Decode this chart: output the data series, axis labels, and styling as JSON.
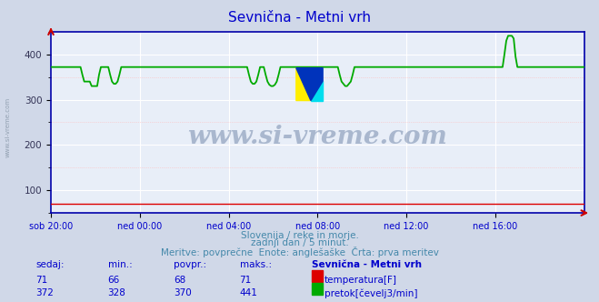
{
  "title": "Sevnična - Metni vrh",
  "title_color": "#0000cc",
  "bg_color": "#d0d8e8",
  "plot_bg_color": "#e8eef8",
  "grid_color_major": "#ffffff",
  "grid_color_minor": "#ffbbbb",
  "xtick_labels": [
    "sob 20:00",
    "ned 00:00",
    "ned 04:00",
    "ned 08:00",
    "ned 12:00",
    "ned 16:00"
  ],
  "n_points": 289,
  "temp_value": 71,
  "temp_color": "#dd0000",
  "flow_color": "#00aa00",
  "flow_base": 372,
  "watermark_text": "www.si-vreme.com",
  "watermark_color": "#1a3a6e",
  "watermark_alpha": 0.3,
  "footer_line1": "Slovenija / reke in morje.",
  "footer_line2": "zadnji dan / 5 minut.",
  "footer_line3": "Meritve: povprečne  Enote: anglešaške  Črta: prva meritev",
  "footer_color": "#4488aa",
  "table_headers": [
    "sedaj:",
    "min.:",
    "povpr.:",
    "maks.:",
    "Sevnična - Metni vrh"
  ],
  "table_color": "#0000cc",
  "temp_row": [
    "71",
    "66",
    "68",
    "71"
  ],
  "flow_row": [
    "372",
    "328",
    "370",
    "441"
  ],
  "temp_label": "temperatura[F]",
  "flow_label": "pretok[čevelj3/min]",
  "spine_color": "#0000aa",
  "arrow_color": "#cc0000",
  "ylim_min": 50,
  "ylim_max": 450,
  "yticks": [
    100,
    200,
    300,
    400
  ],
  "logo_colors": [
    "#ffee00",
    "#00ddee",
    "#0033bb"
  ],
  "left_label": "www.si-vreme.com",
  "left_label_color": "#778899"
}
